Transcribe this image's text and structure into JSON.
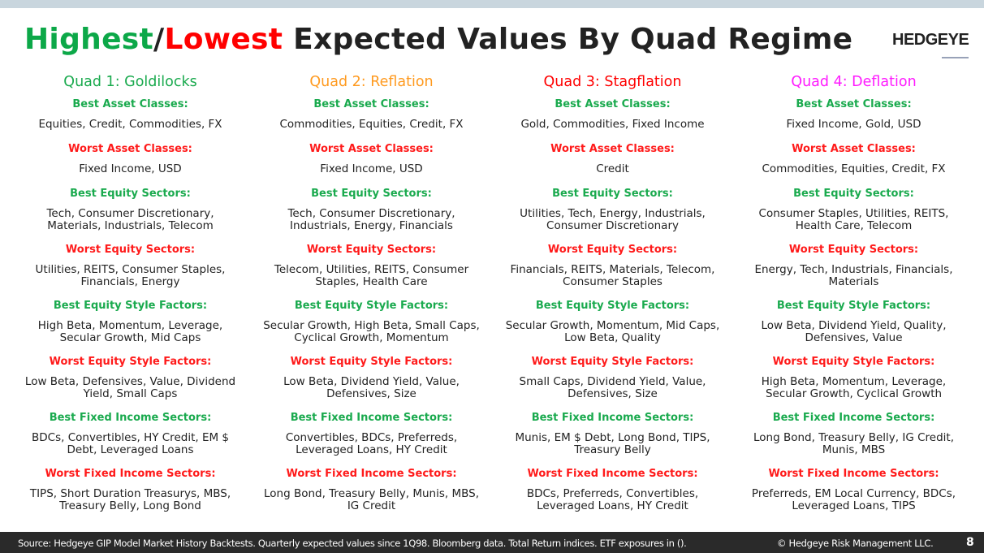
{
  "header": {
    "title_highest": "Highest",
    "title_slash": "/",
    "title_lowest": "Lowest",
    "title_rest": " Expected Values By Quad Regime",
    "logo": "HEDGEYE"
  },
  "colors": {
    "highest": "#0ca848",
    "lowest": "#ff0000",
    "best_label": "#1aaa4e",
    "worst_label": "#ff1a1a",
    "quad1": "#1aaa4e",
    "quad2": "#ff9a1f",
    "quad3": "#ff0000",
    "quad4": "#ff1aff"
  },
  "quads": [
    {
      "title": "Quad 1: Goldilocks",
      "color": "#1aaa4e",
      "sections": [
        {
          "label": "Best Asset Classes:",
          "type": "best",
          "value": "Equities, Credit, Commodities, FX",
          "lines": 1
        },
        {
          "label": "Worst Asset Classes:",
          "type": "worst",
          "value": "Fixed Income, USD",
          "lines": 1
        },
        {
          "label": "Best Equity Sectors:",
          "type": "best",
          "value": "Tech, Consumer Discretionary, Materials, Industrials, Telecom",
          "lines": 2
        },
        {
          "label": "Worst Equity Sectors:",
          "type": "worst",
          "value": "Utilities, REITS, Consumer Staples, Financials, Energy",
          "lines": 2
        },
        {
          "label": "Best Equity Style Factors:",
          "type": "best",
          "value": "High Beta, Momentum, Leverage, Secular Growth, Mid Caps",
          "lines": 2
        },
        {
          "label": "Worst Equity Style Factors:",
          "type": "worst",
          "value": "Low Beta, Defensives, Value, Dividend Yield, Small Caps",
          "lines": 2
        },
        {
          "label": "Best Fixed Income Sectors:",
          "type": "best",
          "value": "BDCs, Convertibles, HY Credit, EM $ Debt, Leveraged Loans",
          "lines": 2
        },
        {
          "label": "Worst Fixed Income Sectors:",
          "type": "worst",
          "value": "TIPS, Short Duration Treasurys, MBS, Treasury Belly, Long Bond",
          "lines": 2
        }
      ]
    },
    {
      "title": "Quad 2: Reflation",
      "color": "#ff9a1f",
      "sections": [
        {
          "label": "Best Asset Classes:",
          "type": "best",
          "value": "Commodities, Equities, Credit, FX",
          "lines": 1
        },
        {
          "label": "Worst Asset Classes:",
          "type": "worst",
          "value": "Fixed Income, USD",
          "lines": 1
        },
        {
          "label": "Best Equity Sectors:",
          "type": "best",
          "value": "Tech, Consumer Discretionary, Industrials, Energy, Financials",
          "lines": 2
        },
        {
          "label": "Worst Equity Sectors:",
          "type": "worst",
          "value": "Telecom, Utilities, REITS, Consumer Staples, Health Care",
          "lines": 2
        },
        {
          "label": "Best Equity Style Factors:",
          "type": "best",
          "value": "Secular Growth, High Beta, Small Caps, Cyclical Growth, Momentum",
          "lines": 2
        },
        {
          "label": "Worst Equity Style Factors:",
          "type": "worst",
          "value": "Low Beta, Dividend Yield, Value, Defensives, Size",
          "lines": 2
        },
        {
          "label": "Best Fixed Income Sectors:",
          "type": "best",
          "value": "Convertibles, BDCs, Preferreds, Leveraged Loans, HY Credit",
          "lines": 2
        },
        {
          "label": "Worst Fixed Income Sectors:",
          "type": "worst",
          "value": "Long Bond, Treasury Belly, Munis, MBS, IG Credit",
          "lines": 2
        }
      ]
    },
    {
      "title": "Quad 3: Stagflation",
      "color": "#ff0000",
      "sections": [
        {
          "label": "Best Asset Classes:",
          "type": "best",
          "value": "Gold, Commodities, Fixed Income",
          "lines": 1
        },
        {
          "label": "Worst Asset Classes:",
          "type": "worst",
          "value": "Credit",
          "lines": 1
        },
        {
          "label": "Best Equity Sectors:",
          "type": "best",
          "value": "Utilities, Tech, Energy, Industrials, Consumer Discretionary",
          "lines": 2
        },
        {
          "label": "Worst Equity Sectors:",
          "type": "worst",
          "value": "Financials, REITS, Materials, Telecom, Consumer Staples",
          "lines": 2
        },
        {
          "label": "Best Equity Style Factors:",
          "type": "best",
          "value": "Secular Growth, Momentum, Mid Caps, Low Beta, Quality",
          "lines": 2
        },
        {
          "label": "Worst Equity Style Factors:",
          "type": "worst",
          "value": "Small Caps, Dividend Yield, Value, Defensives, Size",
          "lines": 2
        },
        {
          "label": "Best Fixed Income Sectors:",
          "type": "best",
          "value": "Munis, EM $ Debt, Long Bond, TIPS, Treasury Belly",
          "lines": 2
        },
        {
          "label": "Worst Fixed Income Sectors:",
          "type": "worst",
          "value": "BDCs, Preferreds, Convertibles, Leveraged Loans, HY Credit",
          "lines": 2
        }
      ]
    },
    {
      "title": "Quad 4: Deflation",
      "color": "#ff1aff",
      "sections": [
        {
          "label": "Best Asset Classes:",
          "type": "best",
          "value": "Fixed Income, Gold, USD",
          "lines": 1
        },
        {
          "label": "Worst Asset Classes:",
          "type": "worst",
          "value": "Commodities, Equities, Credit, FX",
          "lines": 1
        },
        {
          "label": "Best Equity Sectors:",
          "type": "best",
          "value": "Consumer Staples, Utilities, REITS, Health Care, Telecom",
          "lines": 2
        },
        {
          "label": "Worst Equity Sectors:",
          "type": "worst",
          "value": "Energy, Tech, Industrials, Financials, Materials",
          "lines": 2
        },
        {
          "label": "Best Equity Style Factors:",
          "type": "best",
          "value": "Low Beta, Dividend Yield, Quality, Defensives, Value",
          "lines": 2
        },
        {
          "label": "Worst Equity Style Factors:",
          "type": "worst",
          "value": "High Beta, Momentum, Leverage, Secular Growth, Cyclical Growth",
          "lines": 2
        },
        {
          "label": "Best Fixed Income Sectors:",
          "type": "best",
          "value": "Long Bond, Treasury Belly, IG Credit, Munis, MBS",
          "lines": 2
        },
        {
          "label": "Worst Fixed Income Sectors:",
          "type": "worst",
          "value": "Preferreds, EM Local Currency, BDCs, Leveraged Loans, TIPS",
          "lines": 2
        }
      ]
    }
  ],
  "footer": {
    "source": "Source: Hedgeye GIP Model Market History Backtests. Quarterly expected values since 1Q98. Bloomberg data. Total Return indices. ETF exposures in ().",
    "copyright": "© Hedgeye Risk Management LLC.",
    "page_number": "8"
  }
}
